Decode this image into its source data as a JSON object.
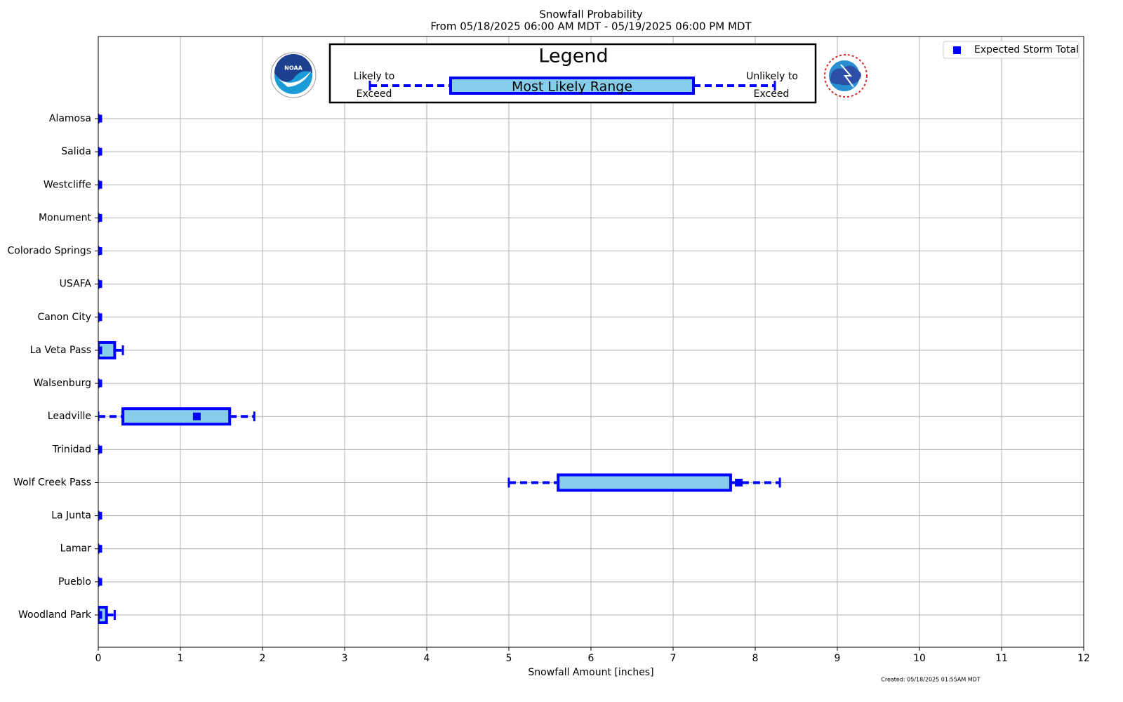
{
  "chart_data": {
    "type": "box",
    "title": "Snowfall Probability",
    "subtitle": "From 05/18/2025 06:00 AM MDT - 05/19/2025 06:00 PM MDT",
    "x_label": "Snowfall Amount [inches]",
    "categories": [
      "Alamosa",
      "Salida",
      "Westcliffe",
      "Monument",
      "Colorado Springs",
      "USAFA",
      "Canon City",
      "La Veta Pass",
      "Walsenburg",
      "Leadville",
      "Trinidad",
      "Wolf Creek Pass",
      "La Junta",
      "Lamar",
      "Pueblo",
      "Woodland Park"
    ],
    "low": [
      0,
      0,
      0,
      0,
      0,
      0,
      0,
      0,
      0,
      0,
      0,
      5.0,
      0,
      0,
      0,
      0
    ],
    "q1": [
      0,
      0,
      0,
      0,
      0,
      0,
      0,
      0,
      0,
      0.3,
      0,
      5.6,
      0,
      0,
      0,
      0
    ],
    "q3": [
      0,
      0,
      0,
      0,
      0,
      0,
      0,
      0.2,
      0,
      1.6,
      0,
      7.7,
      0,
      0,
      0,
      0.1
    ],
    "high": [
      0,
      0,
      0,
      0,
      0,
      0,
      0,
      0.3,
      0,
      1.9,
      0,
      8.3,
      0,
      0,
      0,
      0.2
    ],
    "series": [
      {
        "name": "Expected Storm Total",
        "color": "#0000ff",
        "values": [
          0,
          0,
          0,
          0,
          0,
          0,
          0,
          0,
          0,
          1.2,
          0,
          7.8,
          0,
          0,
          0,
          0
        ]
      }
    ],
    "box_color": "#87ceeb",
    "xlim": [
      0,
      12
    ],
    "xticks": [
      0,
      1,
      2,
      3,
      4,
      5,
      6,
      7,
      8,
      9,
      10,
      11,
      12
    ],
    "grid": true,
    "legend_position": "upper right",
    "key": {
      "title": "Legend",
      "low_label": [
        "Likely to",
        "Exceed"
      ],
      "range_label": "Most Likely Range",
      "high_label": [
        "Unlikely to",
        "Exceed"
      ]
    },
    "footnote": "Created: 05/18/2025 01:55AM MDT"
  }
}
